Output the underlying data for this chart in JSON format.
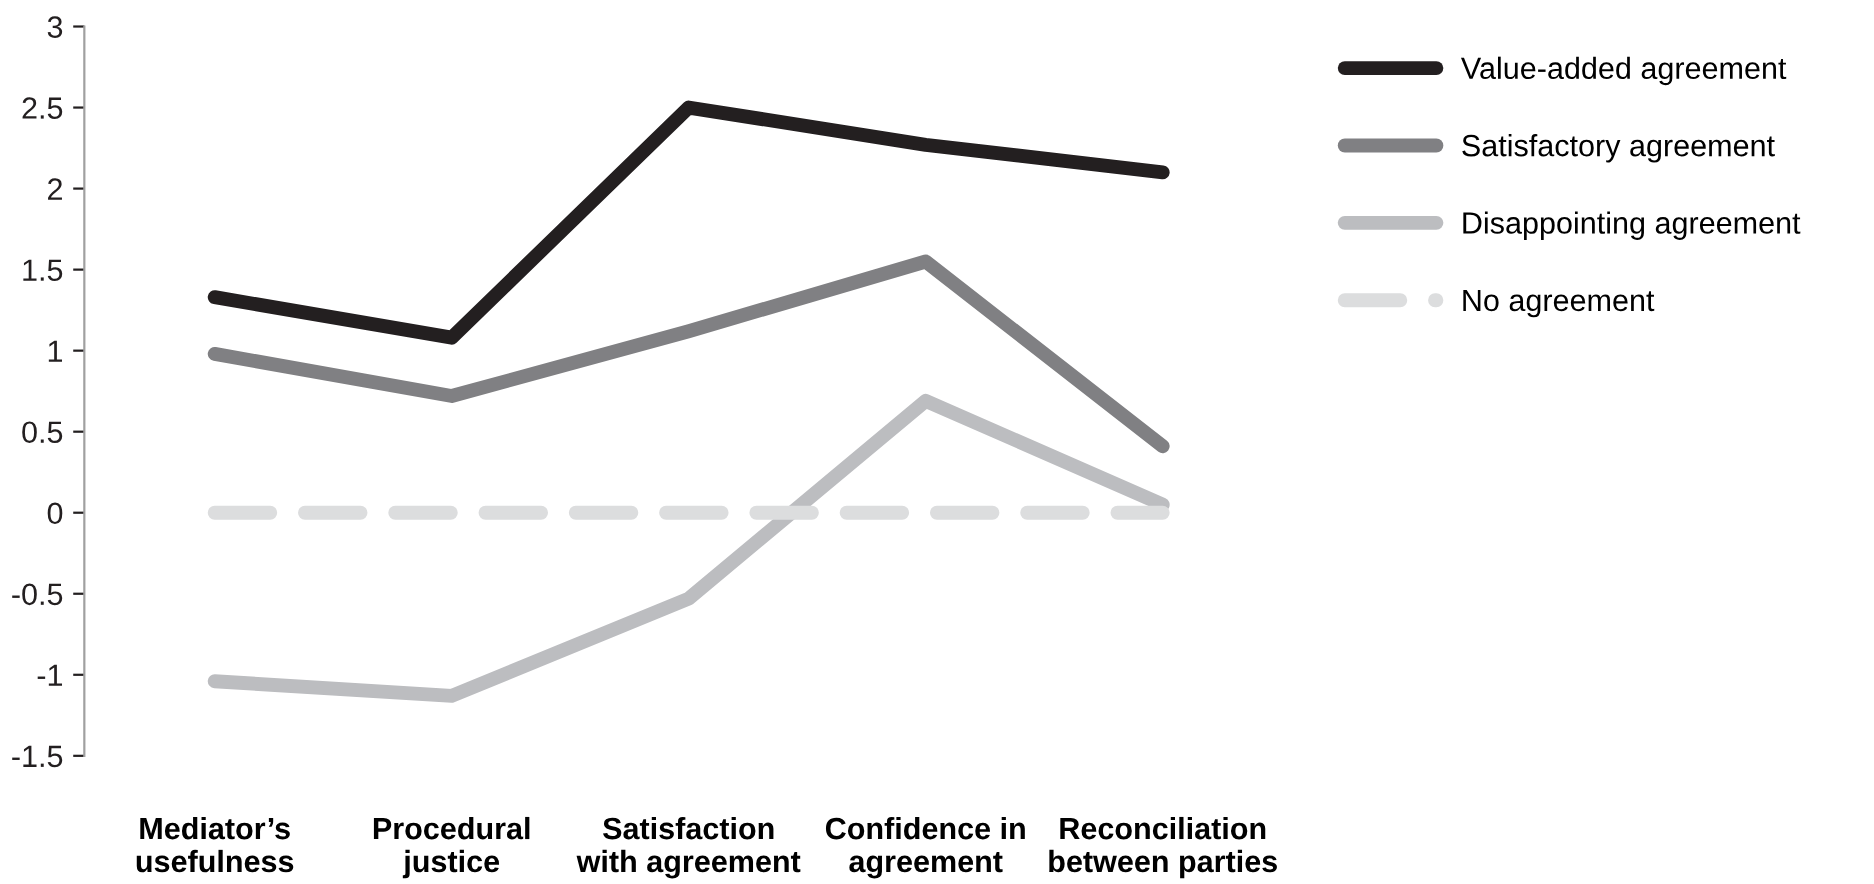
{
  "chart_data": {
    "type": "line",
    "categories": [
      "Mediator’s\nusefulness",
      "Procedural\njustice",
      "Satisfaction\nwith agreement",
      "Confidence in\nagreement",
      "Reconciliation\nbetween parties"
    ],
    "series": [
      {
        "name": "Value-added agreement",
        "color": "#231f20",
        "values": [
          1.33,
          1.08,
          2.5,
          2.27,
          2.1
        ]
      },
      {
        "name": "Satisfactory agreement",
        "color": "#808083",
        "values": [
          0.98,
          0.72,
          1.12,
          1.55,
          0.41
        ]
      },
      {
        "name": "Disappointing agreement",
        "color": "#bcbdc0",
        "values": [
          -1.04,
          -1.13,
          -0.53,
          0.69,
          0.05
        ]
      },
      {
        "name": "No agreement",
        "color": "#dcddde",
        "values": [
          0,
          0,
          0,
          0,
          0
        ],
        "line_style": "dashed"
      }
    ],
    "ylim": [
      -1.5,
      3
    ],
    "yticks": [
      -1.5,
      -1,
      -0.5,
      0,
      0.5,
      1,
      1.5,
      2,
      2.5,
      3
    ],
    "grid": false,
    "legend": "right",
    "marker": "none"
  }
}
